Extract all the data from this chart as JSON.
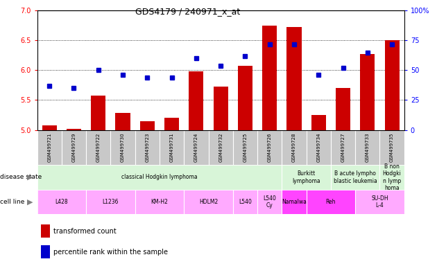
{
  "title": "GDS4179 / 240971_x_at",
  "samples": [
    "GSM499721",
    "GSM499729",
    "GSM499722",
    "GSM499730",
    "GSM499723",
    "GSM499731",
    "GSM499724",
    "GSM499732",
    "GSM499725",
    "GSM499726",
    "GSM499728",
    "GSM499734",
    "GSM499727",
    "GSM499733",
    "GSM499735"
  ],
  "transformed_count": [
    5.08,
    5.02,
    5.57,
    5.28,
    5.14,
    5.2,
    5.98,
    5.73,
    6.08,
    6.75,
    6.73,
    5.25,
    5.7,
    6.27,
    6.5
  ],
  "percentile_rank": [
    37,
    35,
    50,
    46,
    44,
    44,
    60,
    54,
    62,
    72,
    72,
    46,
    52,
    65,
    72
  ],
  "ylim_left": [
    5.0,
    7.0
  ],
  "ylim_right": [
    0,
    100
  ],
  "yticks_left": [
    5.0,
    5.5,
    6.0,
    6.5,
    7.0
  ],
  "yticks_right": [
    0,
    25,
    50,
    75,
    100
  ],
  "ytick_right_labels": [
    "0",
    "25",
    "50",
    "75",
    "100%"
  ],
  "bar_color": "#cc0000",
  "dot_color": "#0000cc",
  "tick_bg_color": "#c8c8c8",
  "disease_color": "#d8f5d8",
  "cell_color_light": "#ffaaff",
  "cell_color_dark": "#ff44ff",
  "disease_groups": [
    {
      "label": "classical Hodgkin lymphoma",
      "start": 0,
      "end": 10
    },
    {
      "label": "Burkitt\nlymphoma",
      "start": 10,
      "end": 12
    },
    {
      "label": "B acute lympho\nblastic leukemia",
      "start": 12,
      "end": 14
    },
    {
      "label": "B non\nHodgki\nn lymp\nhoma",
      "start": 14,
      "end": 15
    }
  ],
  "cell_groups": [
    {
      "label": "L428",
      "start": 0,
      "end": 2,
      "dark": false
    },
    {
      "label": "L1236",
      "start": 2,
      "end": 4,
      "dark": false
    },
    {
      "label": "KM-H2",
      "start": 4,
      "end": 6,
      "dark": false
    },
    {
      "label": "HDLM2",
      "start": 6,
      "end": 8,
      "dark": false
    },
    {
      "label": "L540",
      "start": 8,
      "end": 9,
      "dark": false
    },
    {
      "label": "L540\nCy",
      "start": 9,
      "end": 10,
      "dark": false
    },
    {
      "label": "Namalwa",
      "start": 10,
      "end": 11,
      "dark": true
    },
    {
      "label": "Reh",
      "start": 11,
      "end": 13,
      "dark": true
    },
    {
      "label": "SU-DH\nL-4",
      "start": 13,
      "end": 15,
      "dark": false
    }
  ]
}
